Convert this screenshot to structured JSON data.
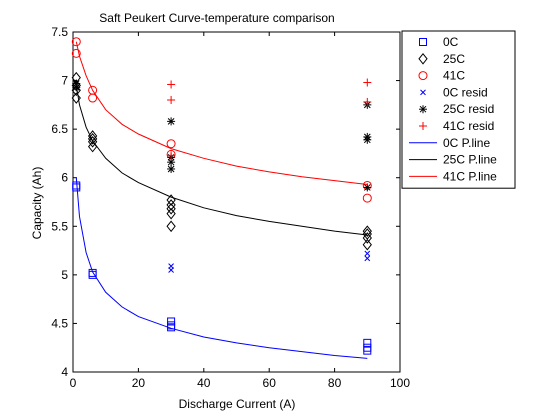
{
  "chart_data": {
    "type": "scatter",
    "title": "Saft Peukert Curve-temperature comparison",
    "xlabel": "Discharge Current (A)",
    "ylabel": "Capacity (Ah)",
    "xlim": [
      0,
      100
    ],
    "ylim": [
      4,
      7.5
    ],
    "xticks": [
      "0",
      "20",
      "40",
      "60",
      "80",
      "100"
    ],
    "yticks": [
      "4",
      "4.5",
      "5",
      "5.5",
      "6",
      "6.5",
      "7",
      "7.5"
    ],
    "grid": false,
    "legend_position": "outside-top-right",
    "series": [
      {
        "name": "0C",
        "kind": "marker",
        "marker": "square",
        "color": "#0000ff",
        "points": [
          [
            1,
            5.92
          ],
          [
            1,
            5.9
          ],
          [
            6,
            5.02
          ],
          [
            6,
            5.0
          ],
          [
            30,
            4.52
          ],
          [
            30,
            4.48
          ],
          [
            30,
            4.46
          ],
          [
            90,
            4.3
          ],
          [
            90,
            4.25
          ],
          [
            90,
            4.22
          ]
        ]
      },
      {
        "name": "25C",
        "kind": "marker",
        "marker": "diamond",
        "color": "#000000",
        "points": [
          [
            1,
            7.03
          ],
          [
            1,
            6.95
          ],
          [
            1,
            6.9
          ],
          [
            1,
            6.82
          ],
          [
            6,
            6.43
          ],
          [
            6,
            6.4
          ],
          [
            6,
            6.37
          ],
          [
            6,
            6.32
          ],
          [
            30,
            5.77
          ],
          [
            30,
            5.72
          ],
          [
            30,
            5.68
          ],
          [
            30,
            5.63
          ],
          [
            30,
            5.5
          ],
          [
            90,
            5.45
          ],
          [
            90,
            5.42
          ],
          [
            90,
            5.38
          ],
          [
            90,
            5.31
          ]
        ]
      },
      {
        "name": "41C",
        "kind": "marker",
        "marker": "circle",
        "color": "#ff0000",
        "points": [
          [
            1,
            7.4
          ],
          [
            1,
            7.28
          ],
          [
            6,
            6.9
          ],
          [
            6,
            6.82
          ],
          [
            30,
            6.35
          ],
          [
            30,
            6.24
          ],
          [
            90,
            5.92
          ],
          [
            90,
            5.79
          ]
        ]
      },
      {
        "name": "0C resid",
        "kind": "marker",
        "marker": "x",
        "color": "#0000ff",
        "points": [
          [
            30,
            5.09
          ],
          [
            30,
            5.05
          ],
          [
            90,
            5.22
          ],
          [
            90,
            5.17
          ]
        ]
      },
      {
        "name": "25C resid",
        "kind": "marker",
        "marker": "star",
        "color": "#000000",
        "points": [
          [
            1,
            6.97
          ],
          [
            1,
            6.93
          ],
          [
            30,
            6.58
          ],
          [
            30,
            6.21
          ],
          [
            30,
            6.16
          ],
          [
            30,
            6.09
          ],
          [
            90,
            6.75
          ],
          [
            90,
            6.42
          ],
          [
            90,
            6.39
          ],
          [
            90,
            5.9
          ]
        ]
      },
      {
        "name": "41C resid",
        "kind": "marker",
        "marker": "plus",
        "color": "#ff0000",
        "points": [
          [
            30,
            6.96
          ],
          [
            30,
            6.8
          ],
          [
            30,
            6.23
          ],
          [
            90,
            6.98
          ],
          [
            90,
            6.78
          ]
        ]
      },
      {
        "name": "0C P.line",
        "kind": "line",
        "color": "#0000ff",
        "points": [
          [
            1,
            6.0
          ],
          [
            2,
            5.6
          ],
          [
            4,
            5.23
          ],
          [
            6,
            5.03
          ],
          [
            10,
            4.82
          ],
          [
            15,
            4.67
          ],
          [
            20,
            4.57
          ],
          [
            30,
            4.45
          ],
          [
            40,
            4.36
          ],
          [
            50,
            4.3
          ],
          [
            60,
            4.25
          ],
          [
            70,
            4.21
          ],
          [
            80,
            4.17
          ],
          [
            90,
            4.14
          ]
        ]
      },
      {
        "name": "25C P.line",
        "kind": "line",
        "color": "#000000",
        "points": [
          [
            1,
            6.95
          ],
          [
            2,
            6.75
          ],
          [
            4,
            6.52
          ],
          [
            6,
            6.38
          ],
          [
            10,
            6.2
          ],
          [
            15,
            6.05
          ],
          [
            20,
            5.95
          ],
          [
            30,
            5.8
          ],
          [
            40,
            5.69
          ],
          [
            50,
            5.61
          ],
          [
            60,
            5.55
          ],
          [
            70,
            5.5
          ],
          [
            80,
            5.45
          ],
          [
            90,
            5.41
          ]
        ]
      },
      {
        "name": "41C P.line",
        "kind": "line",
        "color": "#ff0000",
        "points": [
          [
            1,
            7.4
          ],
          [
            2,
            7.25
          ],
          [
            4,
            7.05
          ],
          [
            6,
            6.9
          ],
          [
            10,
            6.7
          ],
          [
            15,
            6.55
          ],
          [
            20,
            6.45
          ],
          [
            30,
            6.3
          ],
          [
            40,
            6.2
          ],
          [
            50,
            6.12
          ],
          [
            60,
            6.06
          ],
          [
            70,
            6.01
          ],
          [
            80,
            5.97
          ],
          [
            90,
            5.93
          ]
        ]
      }
    ]
  }
}
